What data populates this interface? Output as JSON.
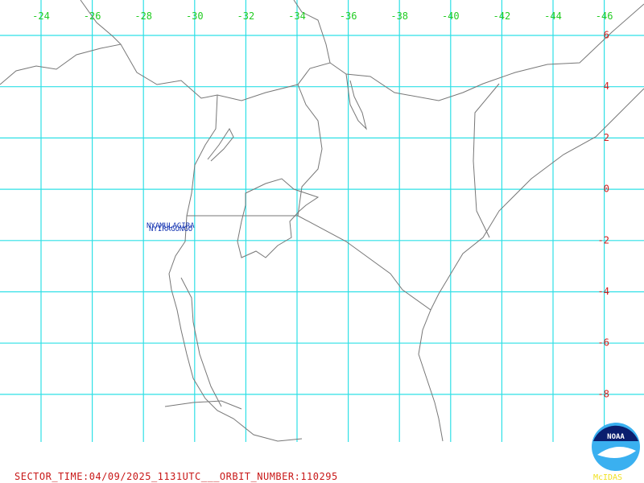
{
  "longitude_labels": [
    "-24",
    "-26",
    "-28",
    "-30",
    "-32",
    "-34",
    "-36",
    "-38",
    "-40",
    "-42",
    "-44",
    "-46"
  ],
  "latitude_labels": [
    "6",
    "4",
    "2",
    "0",
    "-2",
    "-4",
    "-6",
    "-8"
  ],
  "volcano_labels": [
    "NYAMULAGIRA",
    "NYIRAGONGO"
  ],
  "footer": "SECTOR_TIME:04/09/2025_1131UTC___ORBIT_NUMBER:110295",
  "logo": {
    "name": "NOAA",
    "caption": "McIDAS"
  }
}
